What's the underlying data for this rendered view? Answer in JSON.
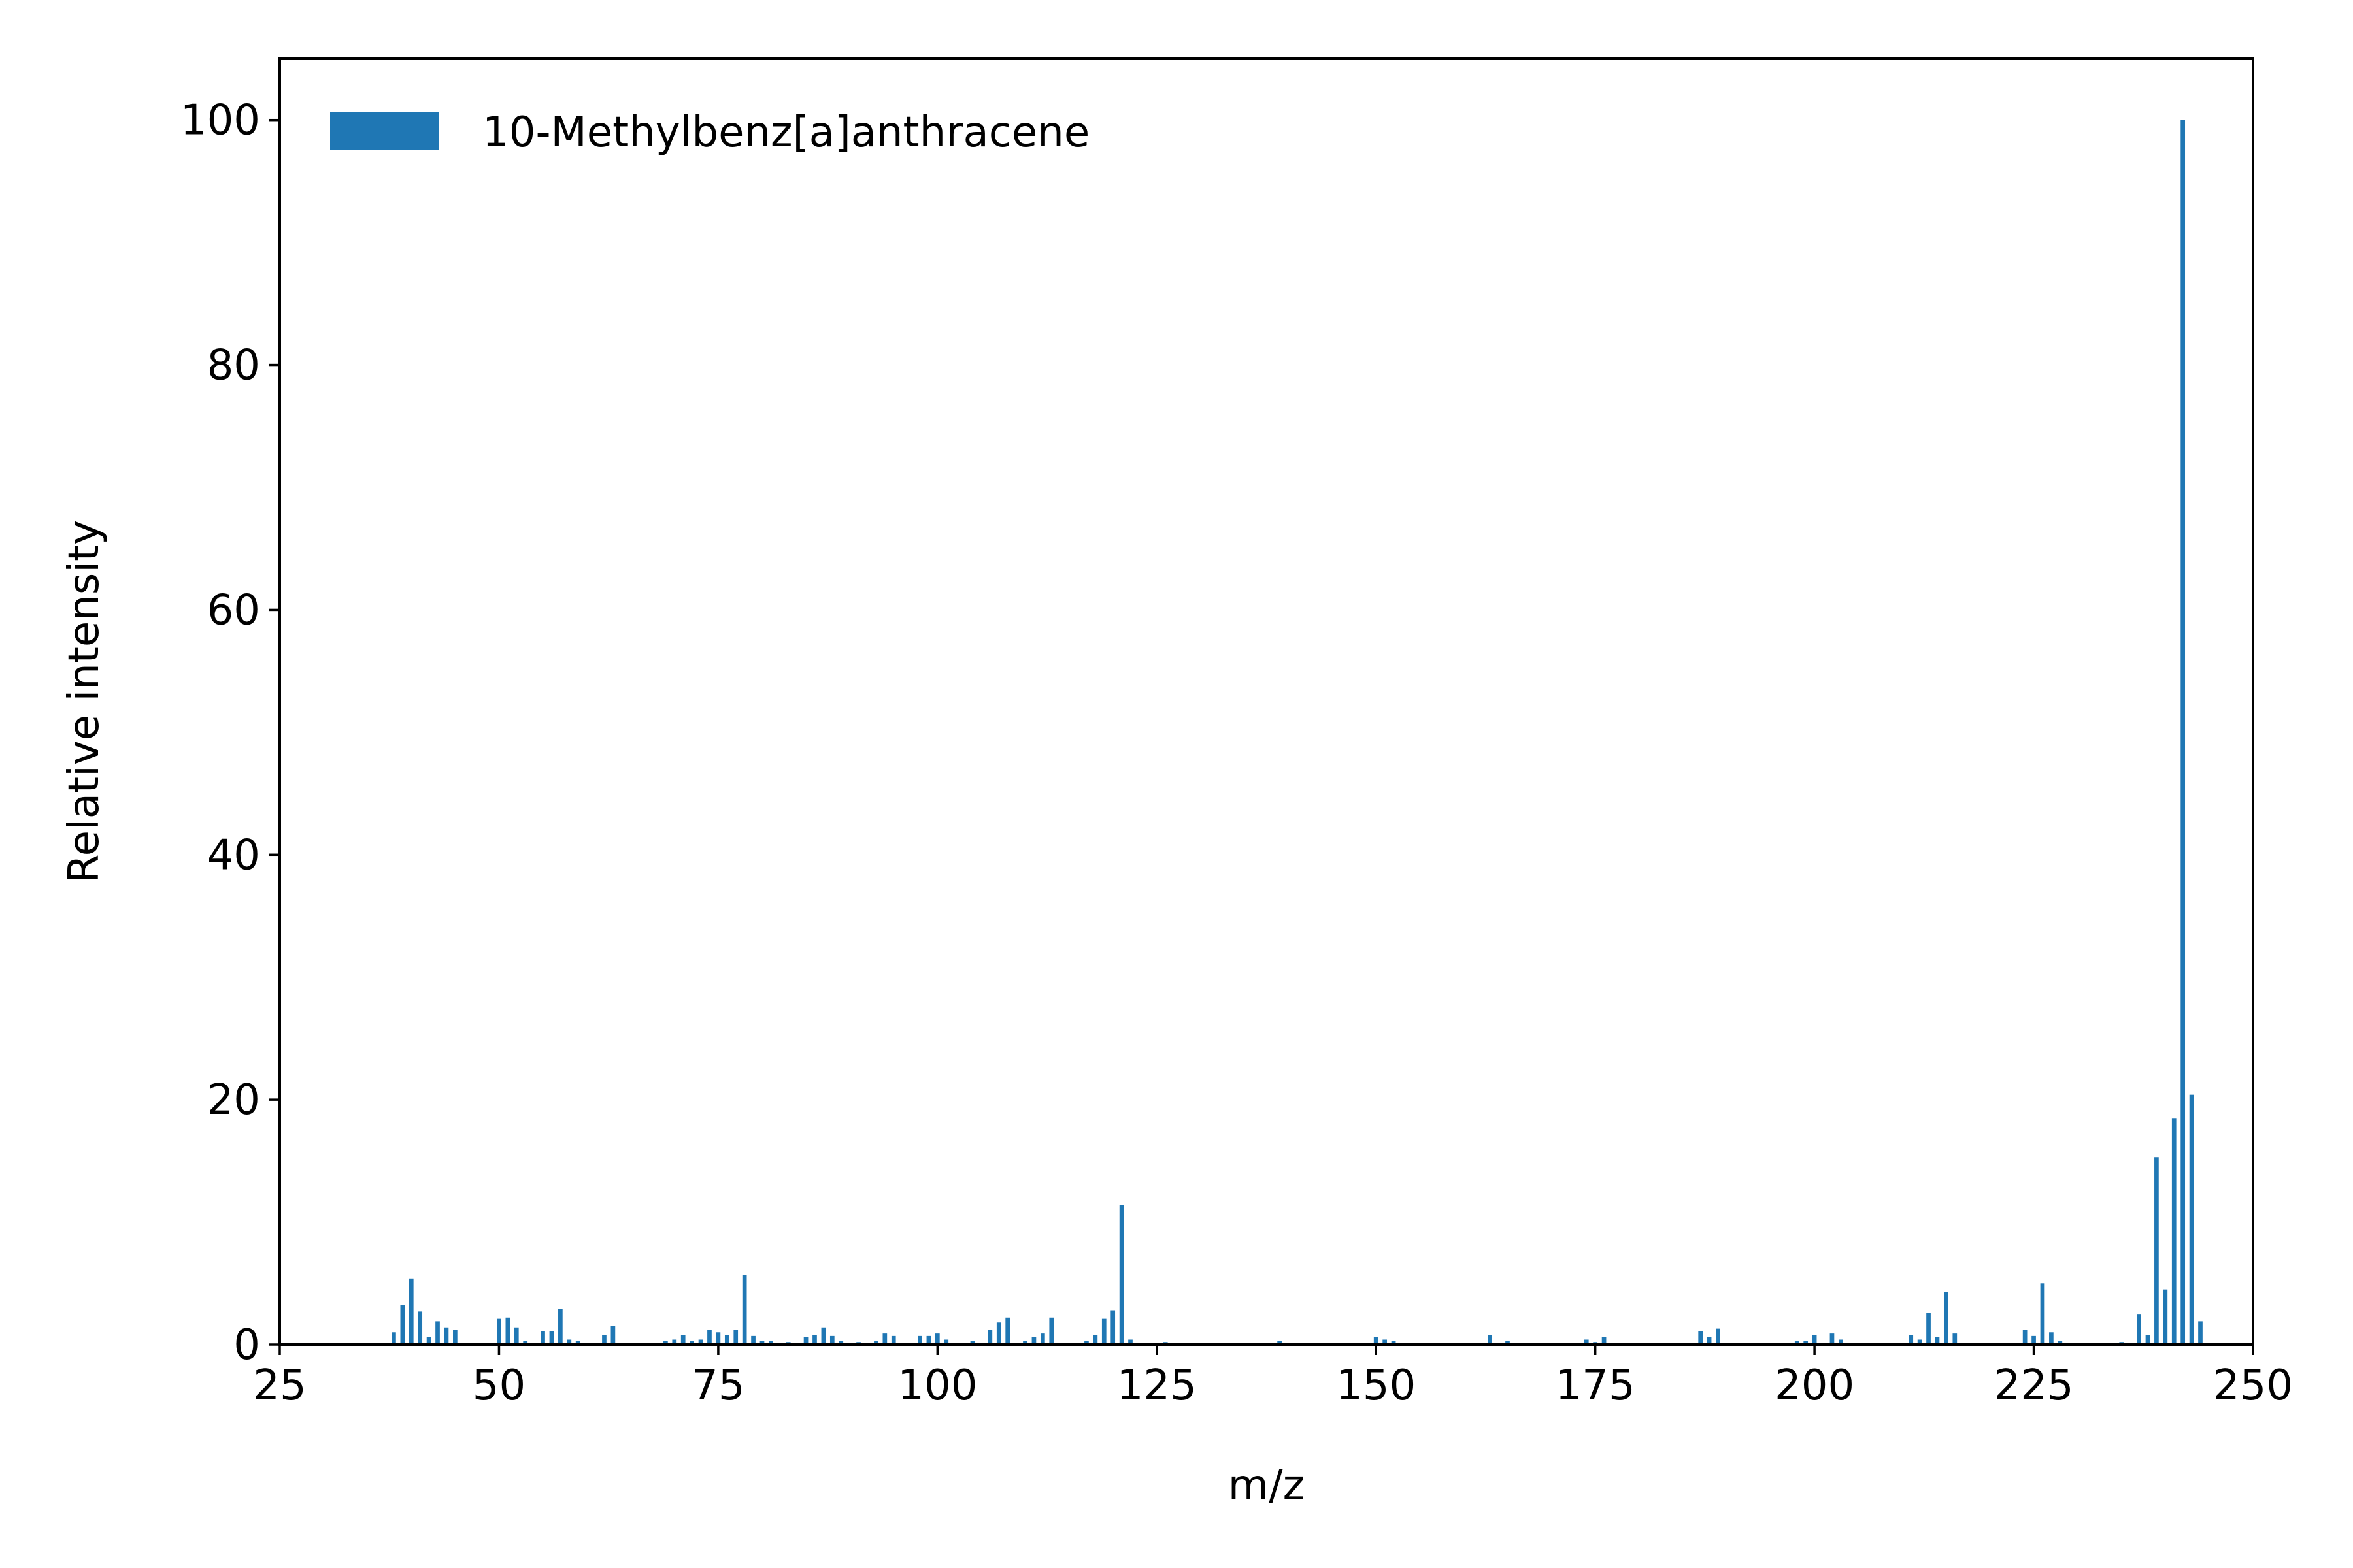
{
  "chart_data": {
    "type": "bar",
    "xlabel": "m/z",
    "ylabel": "Relative intensity",
    "xlim": [
      25,
      250
    ],
    "ylim": [
      0,
      105
    ],
    "xticks": [
      25,
      50,
      75,
      100,
      125,
      150,
      175,
      200,
      225,
      250
    ],
    "yticks": [
      0,
      20,
      40,
      60,
      80,
      100
    ],
    "grid": false,
    "legend_position": "top-left",
    "series": [
      {
        "name": "10-Methylbenz[a]anthracene",
        "color": "#1f77b4",
        "x": [
          38,
          39,
          40,
          41,
          42,
          43,
          44,
          45,
          50,
          51,
          52,
          53,
          55,
          56,
          57,
          58,
          59,
          62,
          63,
          69,
          70,
          71,
          72,
          73,
          74,
          75,
          76,
          77,
          78,
          79,
          80,
          81,
          83,
          85,
          86,
          87,
          88,
          89,
          91,
          93,
          94,
          95,
          98,
          99,
          100,
          101,
          104,
          106,
          107,
          108,
          110,
          111,
          112,
          113,
          117,
          118,
          119,
          120,
          121,
          122,
          126,
          139,
          150,
          151,
          152,
          163,
          165,
          174,
          175,
          176,
          187,
          188,
          189,
          198,
          199,
          200,
          202,
          203,
          211,
          212,
          213,
          214,
          215,
          216,
          224,
          225,
          226,
          227,
          228,
          235,
          237,
          238,
          239,
          240,
          241,
          242,
          243,
          244
        ],
        "y": [
          1.0,
          3.2,
          5.4,
          2.7,
          0.6,
          1.9,
          1.4,
          1.2,
          2.1,
          2.2,
          1.4,
          0.3,
          1.1,
          1.1,
          2.9,
          0.4,
          0.3,
          0.8,
          1.5,
          0.3,
          0.4,
          0.8,
          0.3,
          0.4,
          1.2,
          1.0,
          0.8,
          1.2,
          5.7,
          0.7,
          0.3,
          0.3,
          0.2,
          0.6,
          0.8,
          1.4,
          0.7,
          0.3,
          0.2,
          0.3,
          0.9,
          0.7,
          0.7,
          0.7,
          0.9,
          0.4,
          0.3,
          1.2,
          1.8,
          2.2,
          0.3,
          0.6,
          0.9,
          2.2,
          0.3,
          0.8,
          2.1,
          2.8,
          11.4,
          0.4,
          0.2,
          0.3,
          0.6,
          0.4,
          0.3,
          0.8,
          0.3,
          0.4,
          0.2,
          0.6,
          1.1,
          0.6,
          1.3,
          0.3,
          0.3,
          0.8,
          0.9,
          0.4,
          0.8,
          0.4,
          2.6,
          0.6,
          4.3,
          0.9,
          1.2,
          0.7,
          5.0,
          1.0,
          0.3,
          0.2,
          2.5,
          0.8,
          15.3,
          4.5,
          18.5,
          100.0,
          20.4,
          1.9
        ]
      }
    ]
  }
}
